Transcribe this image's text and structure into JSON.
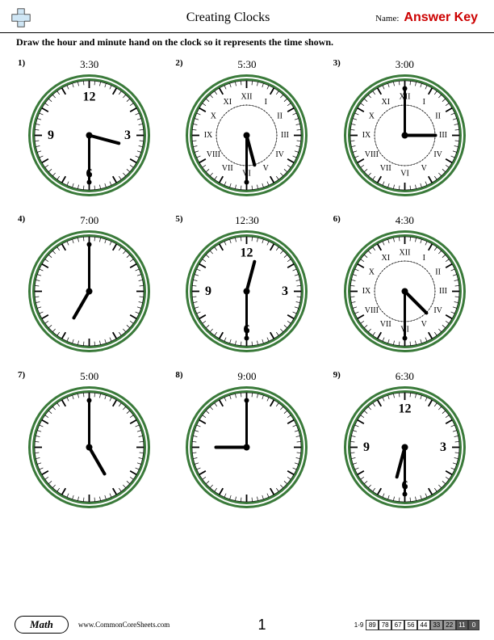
{
  "header": {
    "title": "Creating Clocks",
    "name_label": "Name:",
    "answer_key": "Answer Key"
  },
  "instruction": "Draw the hour and minute hand on the clock so it represents the time shown.",
  "clocks": [
    {
      "n": "1)",
      "time": "3:30",
      "hour": 3,
      "minute": 30,
      "style": "arabic_few",
      "border_color": "#3a7a3a",
      "face_color": "#ffffff",
      "hand_color": "#000000"
    },
    {
      "n": "2)",
      "time": "5:30",
      "hour": 5,
      "minute": 30,
      "style": "roman",
      "border_color": "#3a7a3a",
      "face_color": "#ffffff",
      "hand_color": "#000000"
    },
    {
      "n": "3)",
      "time": "3:00",
      "hour": 3,
      "minute": 0,
      "style": "roman",
      "border_color": "#3a7a3a",
      "face_color": "#ffffff",
      "hand_color": "#000000"
    },
    {
      "n": "4)",
      "time": "7:00",
      "hour": 7,
      "minute": 0,
      "style": "ticks",
      "border_color": "#3a7a3a",
      "face_color": "#ffffff",
      "hand_color": "#000000"
    },
    {
      "n": "5)",
      "time": "12:30",
      "hour": 12,
      "minute": 30,
      "style": "arabic_few",
      "border_color": "#3a7a3a",
      "face_color": "#ffffff",
      "hand_color": "#000000"
    },
    {
      "n": "6)",
      "time": "4:30",
      "hour": 4,
      "minute": 30,
      "style": "roman",
      "border_color": "#3a7a3a",
      "face_color": "#ffffff",
      "hand_color": "#000000"
    },
    {
      "n": "7)",
      "time": "5:00",
      "hour": 5,
      "minute": 0,
      "style": "ticks",
      "border_color": "#3a7a3a",
      "face_color": "#ffffff",
      "hand_color": "#000000"
    },
    {
      "n": "8)",
      "time": "9:00",
      "hour": 9,
      "minute": 0,
      "style": "ticks",
      "border_color": "#3a7a3a",
      "face_color": "#ffffff",
      "hand_color": "#000000"
    },
    {
      "n": "9)",
      "time": "6:30",
      "hour": 6,
      "minute": 30,
      "style": "arabic_few",
      "border_color": "#3a7a3a",
      "face_color": "#ffffff",
      "hand_color": "#000000"
    }
  ],
  "footer": {
    "subject": "Math",
    "url": "www.CommonCoreSheets.com",
    "page": "1",
    "score_range": "1-9",
    "scores": [
      "89",
      "78",
      "67",
      "56",
      "44",
      "33",
      "22",
      "11",
      "0"
    ]
  },
  "dims": {
    "clock_size": 155,
    "hour_len": 38,
    "minute_len": 58
  }
}
